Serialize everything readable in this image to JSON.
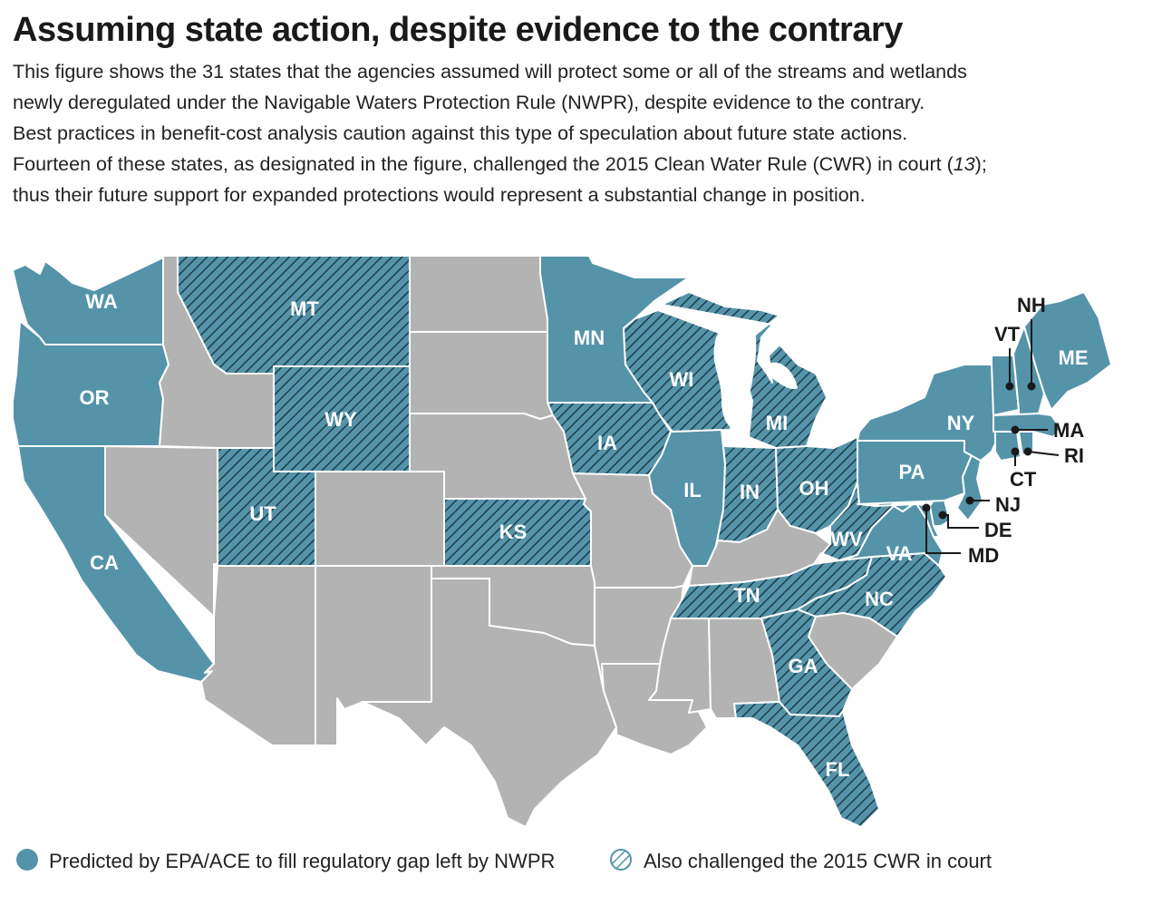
{
  "title": "Assuming state action, despite evidence to the contrary",
  "description": [
    "This figure shows the 31 states that the agencies assumed will protect some or all of the streams and wetlands",
    "newly deregulated under the Navigable Waters Protection Rule (NWPR), despite evidence to the contrary.",
    "Best practices in benefit-cost analysis caution against this type of speculation about future state actions.",
    "Fourteen of these states, as designated in the figure, challenged the 2015 Clean Water Rule (CWR) in court (",
    "13",
    ");",
    "thus their future support for expanded protections would represent a substantial change in position."
  ],
  "colors": {
    "predicted": "#5593a9",
    "other": "#b3b3b3",
    "hatch": "#1d3d4b",
    "border": "#ffffff"
  },
  "legend": {
    "predicted": "Predicted by EPA/ACE to fill regulatory gap left by NWPR",
    "challenged": "Also challenged the 2015 CWR in court"
  },
  "states": {
    "WA": {
      "label": "WA",
      "predicted": true,
      "challenged": false
    },
    "OR": {
      "label": "OR",
      "predicted": true,
      "challenged": false
    },
    "CA": {
      "label": "CA",
      "predicted": true,
      "challenged": false
    },
    "MT": {
      "label": "MT",
      "predicted": true,
      "challenged": true
    },
    "WY": {
      "label": "WY",
      "predicted": true,
      "challenged": true
    },
    "UT": {
      "label": "UT",
      "predicted": true,
      "challenged": true
    },
    "KS": {
      "label": "KS",
      "predicted": true,
      "challenged": true
    },
    "MN": {
      "label": "MN",
      "predicted": true,
      "challenged": false
    },
    "IA": {
      "label": "IA",
      "predicted": true,
      "challenged": true
    },
    "WI": {
      "label": "WI",
      "predicted": true,
      "challenged": true
    },
    "MI": {
      "label": "MI",
      "predicted": true,
      "challenged": true
    },
    "IL": {
      "label": "IL",
      "predicted": true,
      "challenged": false
    },
    "IN": {
      "label": "IN",
      "predicted": true,
      "challenged": true
    },
    "OH": {
      "label": "OH",
      "predicted": true,
      "challenged": true
    },
    "WV": {
      "label": "WV",
      "predicted": true,
      "challenged": true
    },
    "TN": {
      "label": "TN",
      "predicted": true,
      "challenged": true
    },
    "NC": {
      "label": "NC",
      "predicted": true,
      "challenged": true
    },
    "GA": {
      "label": "GA",
      "predicted": true,
      "challenged": true
    },
    "FL": {
      "label": "FL",
      "predicted": true,
      "challenged": true
    },
    "VA": {
      "label": "VA",
      "predicted": true,
      "challenged": false
    },
    "PA": {
      "label": "PA",
      "predicted": true,
      "challenged": false
    },
    "NY": {
      "label": "NY",
      "predicted": true,
      "challenged": false
    },
    "VT": {
      "label": "VT",
      "predicted": true,
      "challenged": false
    },
    "NH": {
      "label": "NH",
      "predicted": true,
      "challenged": false
    },
    "ME": {
      "label": "ME",
      "predicted": true,
      "challenged": false
    },
    "MA": {
      "label": "MA",
      "predicted": true,
      "challenged": false
    },
    "RI": {
      "label": "RI",
      "predicted": true,
      "challenged": false
    },
    "CT": {
      "label": "CT",
      "predicted": true,
      "challenged": false
    },
    "NJ": {
      "label": "NJ",
      "predicted": true,
      "challenged": false
    },
    "DE": {
      "label": "DE",
      "predicted": true,
      "challenged": false
    },
    "MD": {
      "label": "MD",
      "predicted": true,
      "challenged": false
    },
    "ID": {
      "predicted": false,
      "challenged": false
    },
    "NV": {
      "predicted": false,
      "challenged": false
    },
    "AZ": {
      "predicted": false,
      "challenged": false
    },
    "NM": {
      "predicted": false,
      "challenged": false
    },
    "CO": {
      "predicted": false,
      "challenged": false
    },
    "ND": {
      "predicted": false,
      "challenged": false
    },
    "SD": {
      "predicted": false,
      "challenged": false
    },
    "NE": {
      "predicted": false,
      "challenged": false
    },
    "OK": {
      "predicted": false,
      "challenged": false
    },
    "TX": {
      "predicted": false,
      "challenged": false
    },
    "MO": {
      "predicted": false,
      "challenged": false
    },
    "AR": {
      "predicted": false,
      "challenged": false
    },
    "LA": {
      "predicted": false,
      "challenged": false
    },
    "MS": {
      "predicted": false,
      "challenged": false
    },
    "AL": {
      "predicted": false,
      "challenged": false
    },
    "KY": {
      "predicted": false,
      "challenged": false
    },
    "SC": {
      "predicted": false,
      "challenged": false
    }
  }
}
